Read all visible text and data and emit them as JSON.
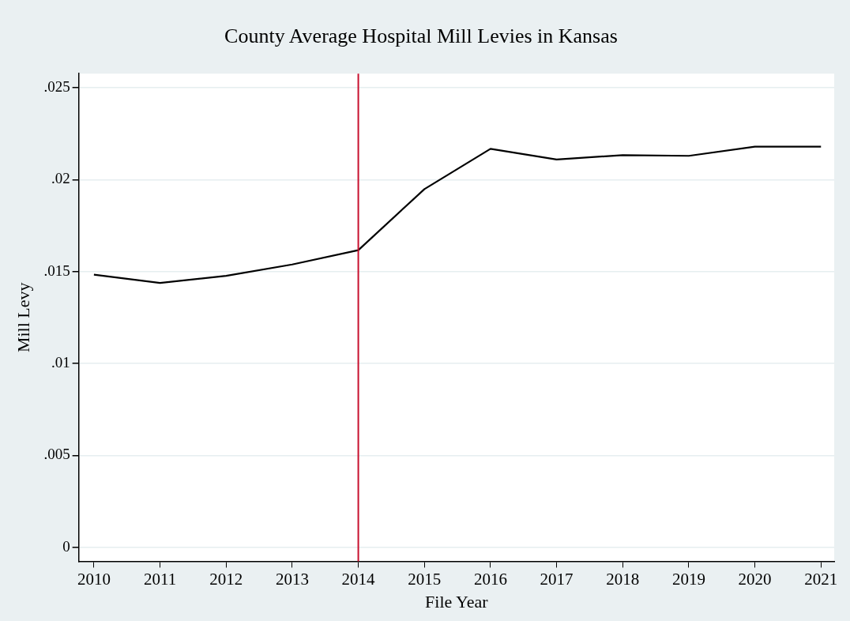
{
  "chart_data": {
    "type": "line",
    "title": "County Average Hospital Mill Levies in Kansas",
    "xlabel": "File Year",
    "ylabel": "Mill Levy",
    "x": [
      2010,
      2011,
      2012,
      2013,
      2014,
      2015,
      2016,
      2017,
      2018,
      2019,
      2020,
      2021
    ],
    "series": [
      {
        "color": "#000000",
        "values": [
          0.01483,
          0.01438,
          0.01476,
          0.01538,
          0.01616,
          0.01948,
          0.02167,
          0.02109,
          0.02133,
          0.02129,
          0.02179,
          0.02179
        ]
      }
    ],
    "xlim": [
      2009.77,
      2021.2
    ],
    "xticks": [
      2010,
      2011,
      2012,
      2013,
      2014,
      2015,
      2016,
      2017,
      2018,
      2019,
      2020,
      2021
    ],
    "ylim": [
      -0.00076,
      0.02576
    ],
    "yticks": [
      {
        "value": 0,
        "label": "0"
      },
      {
        "value": 0.005,
        "label": ".005"
      },
      {
        "value": 0.01,
        "label": ".01"
      },
      {
        "value": 0.015,
        "label": ".015"
      },
      {
        "value": 0.02,
        "label": ".02"
      },
      {
        "value": 0.025,
        "label": ".025"
      }
    ],
    "ref_lines": [
      {
        "axis": "x",
        "value": 2014,
        "color": "#c8102e"
      }
    ],
    "grid": "y",
    "legend": false,
    "marker": "none",
    "line_style": "solid"
  }
}
